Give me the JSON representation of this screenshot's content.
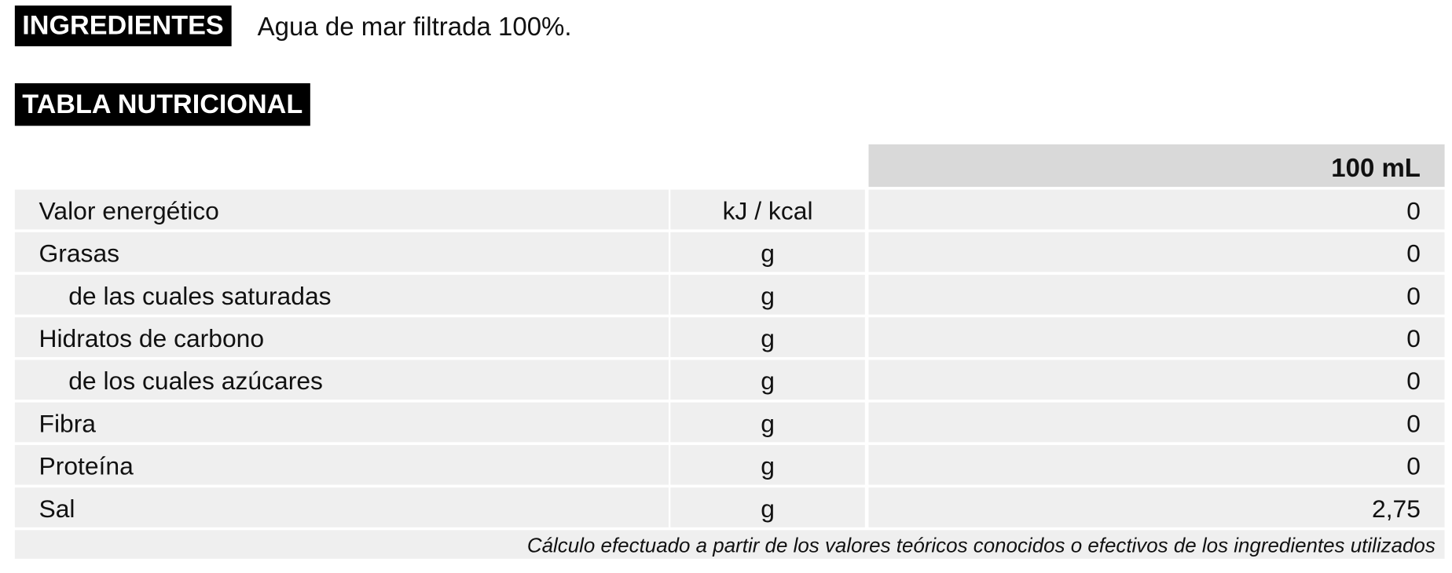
{
  "ingredients": {
    "label": "INGREDIENTES",
    "text": "Agua de mar filtrada 100%."
  },
  "table": {
    "title": "TABLA NUTRICIONAL",
    "header": "100 mL",
    "rows": [
      [
        "Valor energético",
        "kJ / kcal",
        "0"
      ],
      [
        "Grasas",
        "g",
        "0"
      ],
      [
        "de las cuales saturadas",
        "g",
        "0"
      ],
      [
        "Hidratos de carbono",
        "g",
        "0"
      ],
      [
        "de los cuales azúcares",
        "g",
        "0"
      ],
      [
        "Fibra",
        "g",
        "0"
      ],
      [
        "Proteína",
        "g",
        "0"
      ],
      [
        "Sal",
        "g",
        "2,75"
      ]
    ],
    "footnote": "Cálculo efectuado a partir de los valores teóricos conocidos o efectivos de los ingredientes utilizados"
  }
}
